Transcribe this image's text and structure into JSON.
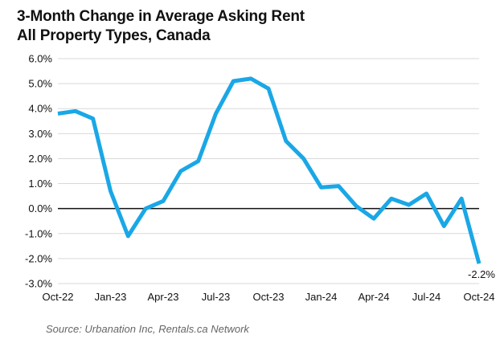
{
  "title_lines": [
    "3-Month Change in Average Asking Rent",
    "All Property Types, Canada"
  ],
  "source": "Source: Urbanation Inc, Rentals.ca Network",
  "colors": {
    "line": "#1aa7e6",
    "grid": "#d9d9d9",
    "zero_line": "#111111",
    "text": "#111111",
    "source_text": "#666666"
  },
  "chart_data": {
    "type": "line",
    "title": "3-Month Change in Average Asking Rent",
    "subtitle": "All Property Types, Canada",
    "x": [
      "Oct-22",
      "Nov-22",
      "Dec-22",
      "Jan-23",
      "Feb-23",
      "Mar-23",
      "Apr-23",
      "May-23",
      "Jun-23",
      "Jul-23",
      "Aug-23",
      "Sep-23",
      "Oct-23",
      "Nov-23",
      "Dec-23",
      "Jan-24",
      "Feb-24",
      "Mar-24",
      "Apr-24",
      "May-24",
      "Jun-24",
      "Jul-24",
      "Aug-24",
      "Sep-24",
      "Oct-24"
    ],
    "x_tick_labels": [
      "Oct-22",
      "Jan-23",
      "Apr-23",
      "Jul-23",
      "Oct-23",
      "Jan-24",
      "Apr-24",
      "Jul-24",
      "Oct-24"
    ],
    "series": [
      {
        "values": [
          3.8,
          3.9,
          3.6,
          0.7,
          -1.1,
          0.0,
          0.3,
          1.5,
          1.9,
          3.8,
          5.1,
          5.2,
          4.8,
          2.7,
          2.0,
          0.85,
          0.9,
          0.1,
          -0.4,
          0.4,
          0.15,
          0.6,
          -0.7,
          0.4,
          -2.2
        ]
      }
    ],
    "ylim": [
      -3.0,
      6.0
    ],
    "y_ticks": [
      6.0,
      5.0,
      4.0,
      3.0,
      2.0,
      1.0,
      0.0,
      -1.0,
      -2.0,
      -3.0
    ],
    "y_tick_labels": [
      "6.0%",
      "5.0%",
      "4.0%",
      "3.0%",
      "2.0%",
      "1.0%",
      "0.0%",
      "-1.0%",
      "-2.0%",
      "-3.0%"
    ],
    "data_labels": [
      {
        "index": 24,
        "text": "-2.2%"
      }
    ],
    "xlabel": "",
    "ylabel": "",
    "grid": true,
    "legend": "none"
  }
}
